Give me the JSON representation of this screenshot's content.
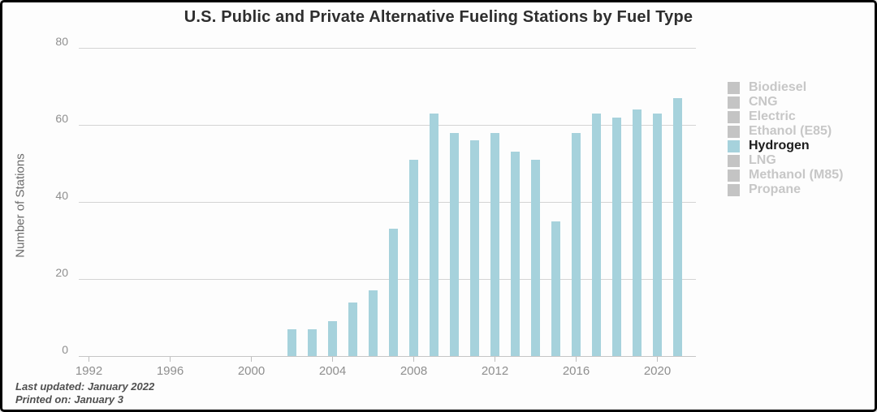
{
  "window": {
    "background": "#fdfdfd",
    "frame_color": "#000000"
  },
  "chart_data": {
    "type": "bar",
    "title": "U.S. Public and Private Alternative Fueling Stations by Fuel Type",
    "xlabel": "",
    "ylabel": "Number of Stations",
    "ylim": [
      0,
      80
    ],
    "y_ticks": [
      0,
      20,
      40,
      60,
      80
    ],
    "x_ticks": [
      1992,
      1996,
      2000,
      2004,
      2008,
      2012,
      2016,
      2020
    ],
    "x_range": [
      1991.5,
      2021.9
    ],
    "grid": "horizontal-only",
    "legend_position": "right",
    "series": [
      {
        "name": "Hydrogen",
        "color": "#a6d2dc",
        "x": [
          2002,
          2003,
          2004,
          2005,
          2006,
          2007,
          2008,
          2009,
          2010,
          2011,
          2012,
          2013,
          2014,
          2015,
          2016,
          2017,
          2018,
          2019,
          2020,
          2021
        ],
        "values": [
          7,
          7,
          9,
          14,
          17,
          33,
          51,
          63,
          58,
          56,
          58,
          53,
          51,
          35,
          58,
          63,
          62,
          64,
          63,
          67
        ]
      }
    ],
    "legend": [
      {
        "label": "Biodiesel",
        "active": false
      },
      {
        "label": "CNG",
        "active": false
      },
      {
        "label": "Electric",
        "active": false
      },
      {
        "label": "Ethanol (E85)",
        "active": false
      },
      {
        "label": "Hydrogen",
        "active": true
      },
      {
        "label": "LNG",
        "active": false
      },
      {
        "label": "Methanol (M85)",
        "active": false
      },
      {
        "label": "Propane",
        "active": false
      }
    ],
    "colors": {
      "active_bar": "#a6d2dc",
      "inactive_swatch": "#c4c4c4",
      "inactive_text": "#c7c7c7",
      "active_text": "#1c1c1c",
      "gridline": "#d4d4d4",
      "tick_text": "#8f8f8f"
    }
  },
  "footer": {
    "line1": "Last updated: January 2022",
    "line2": "Printed on: January 3"
  }
}
